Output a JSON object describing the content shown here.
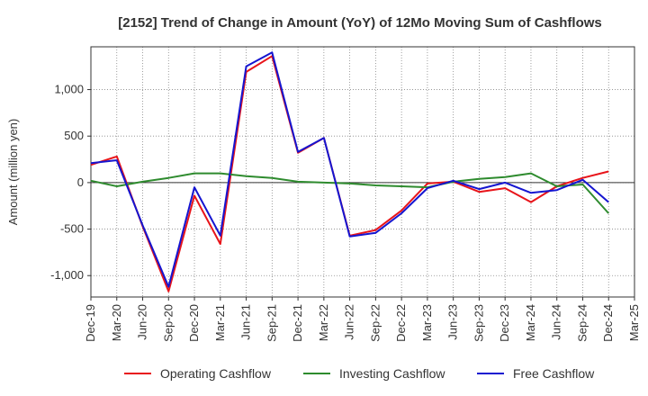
{
  "chart_data": {
    "type": "line",
    "title": "[2152]  Trend of Change in Amount (YoY) of 12Mo Moving Sum of Cashflows",
    "xlabel": "",
    "ylabel": "Amount (million yen)",
    "ylim": [
      -1230,
      1460
    ],
    "yticks": [
      -1000,
      -500,
      0,
      500,
      1000
    ],
    "ytick_labels": [
      "-1,000",
      "-500",
      "0",
      "500",
      "1,000"
    ],
    "categories": [
      "Dec-19",
      "Mar-20",
      "Jun-20",
      "Sep-20",
      "Dec-20",
      "Mar-21",
      "Jun-21",
      "Sep-21",
      "Dec-21",
      "Mar-22",
      "Jun-22",
      "Sep-22",
      "Dec-22",
      "Mar-23",
      "Jun-23",
      "Sep-23",
      "Dec-23",
      "Mar-24",
      "Jun-24",
      "Sep-24",
      "Dec-24",
      "Mar-25"
    ],
    "grid": true,
    "legend_position": "bottom",
    "series": [
      {
        "name": "Operating Cashflow",
        "color": "#e8141a",
        "values": [
          190,
          280,
          -470,
          -1170,
          -140,
          -660,
          1190,
          1360,
          320,
          480,
          -570,
          -510,
          -300,
          -10,
          10,
          -100,
          -60,
          -210,
          -40,
          50,
          120,
          null
        ]
      },
      {
        "name": "Investing Cashflow",
        "color": "#2e8b2e",
        "values": [
          20,
          -40,
          10,
          50,
          100,
          100,
          70,
          50,
          10,
          0,
          -10,
          -30,
          -40,
          -50,
          10,
          40,
          60,
          100,
          -40,
          -20,
          -330,
          null
        ]
      },
      {
        "name": "Free Cashflow",
        "color": "#1515d0",
        "values": [
          210,
          240,
          -460,
          -1120,
          -50,
          -570,
          1250,
          1400,
          330,
          480,
          -580,
          -540,
          -330,
          -60,
          20,
          -70,
          0,
          -110,
          -80,
          30,
          -210,
          null
        ]
      }
    ]
  }
}
